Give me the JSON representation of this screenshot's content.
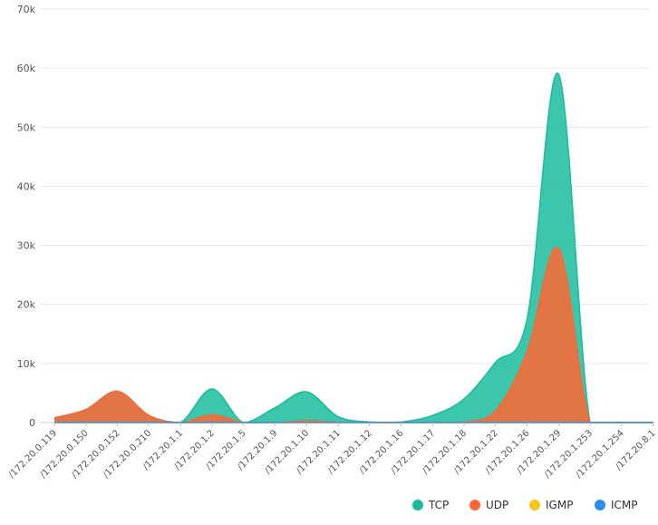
{
  "chart_data": {
    "type": "area",
    "categories": [
      "/172.20.0.119",
      "/172.20.0.150",
      "/172.20.0.152",
      "/172.20.0.210",
      "/172.20.1.1",
      "/172.20.1.2",
      "/172.20.1.5",
      "/172.20.1.9",
      "/172.20.1.10",
      "/172.20.1.11",
      "/172.20.1.12",
      "/172.20.1.16",
      "/172.20.1.17",
      "/172.20.1.18",
      "/172.20.1.22",
      "/172.20.1.26",
      "/172.20.1.29",
      "/172.20.1.253",
      "/172.20.1.254",
      "/172.20.8.1"
    ],
    "y_ticks": [
      "0",
      "10k",
      "20k",
      "30k",
      "40k",
      "50k",
      "60k",
      "70k"
    ],
    "ylim": [
      0,
      70000
    ],
    "grid": true,
    "legend_position": "bottom-right",
    "series": [
      {
        "name": "TCP",
        "color": "#1abc9c",
        "values": [
          800,
          2200,
          5300,
          1200,
          0,
          5700,
          0,
          2500,
          5200,
          1000,
          100,
          100,
          1200,
          4000,
          10200,
          17500,
          59000,
          0,
          0,
          0
        ]
      },
      {
        "name": "UDP",
        "color": "#ff6633",
        "values": [
          800,
          2200,
          5300,
          1200,
          0,
          1300,
          0,
          0,
          300,
          50,
          0,
          0,
          0,
          100,
          2000,
          12000,
          29500,
          0,
          0,
          0
        ]
      },
      {
        "name": "IGMP",
        "color": "#f5c518",
        "values": [
          0,
          0,
          0,
          0,
          0,
          0,
          0,
          0,
          0,
          0,
          0,
          0,
          0,
          0,
          0,
          0,
          0,
          0,
          0,
          0
        ]
      },
      {
        "name": "ICMP",
        "color": "#2d8cf0",
        "values": [
          0,
          0,
          0,
          0,
          0,
          0,
          0,
          0,
          0,
          0,
          0,
          0,
          0,
          0,
          0,
          0,
          0,
          0,
          0,
          0
        ]
      }
    ]
  }
}
